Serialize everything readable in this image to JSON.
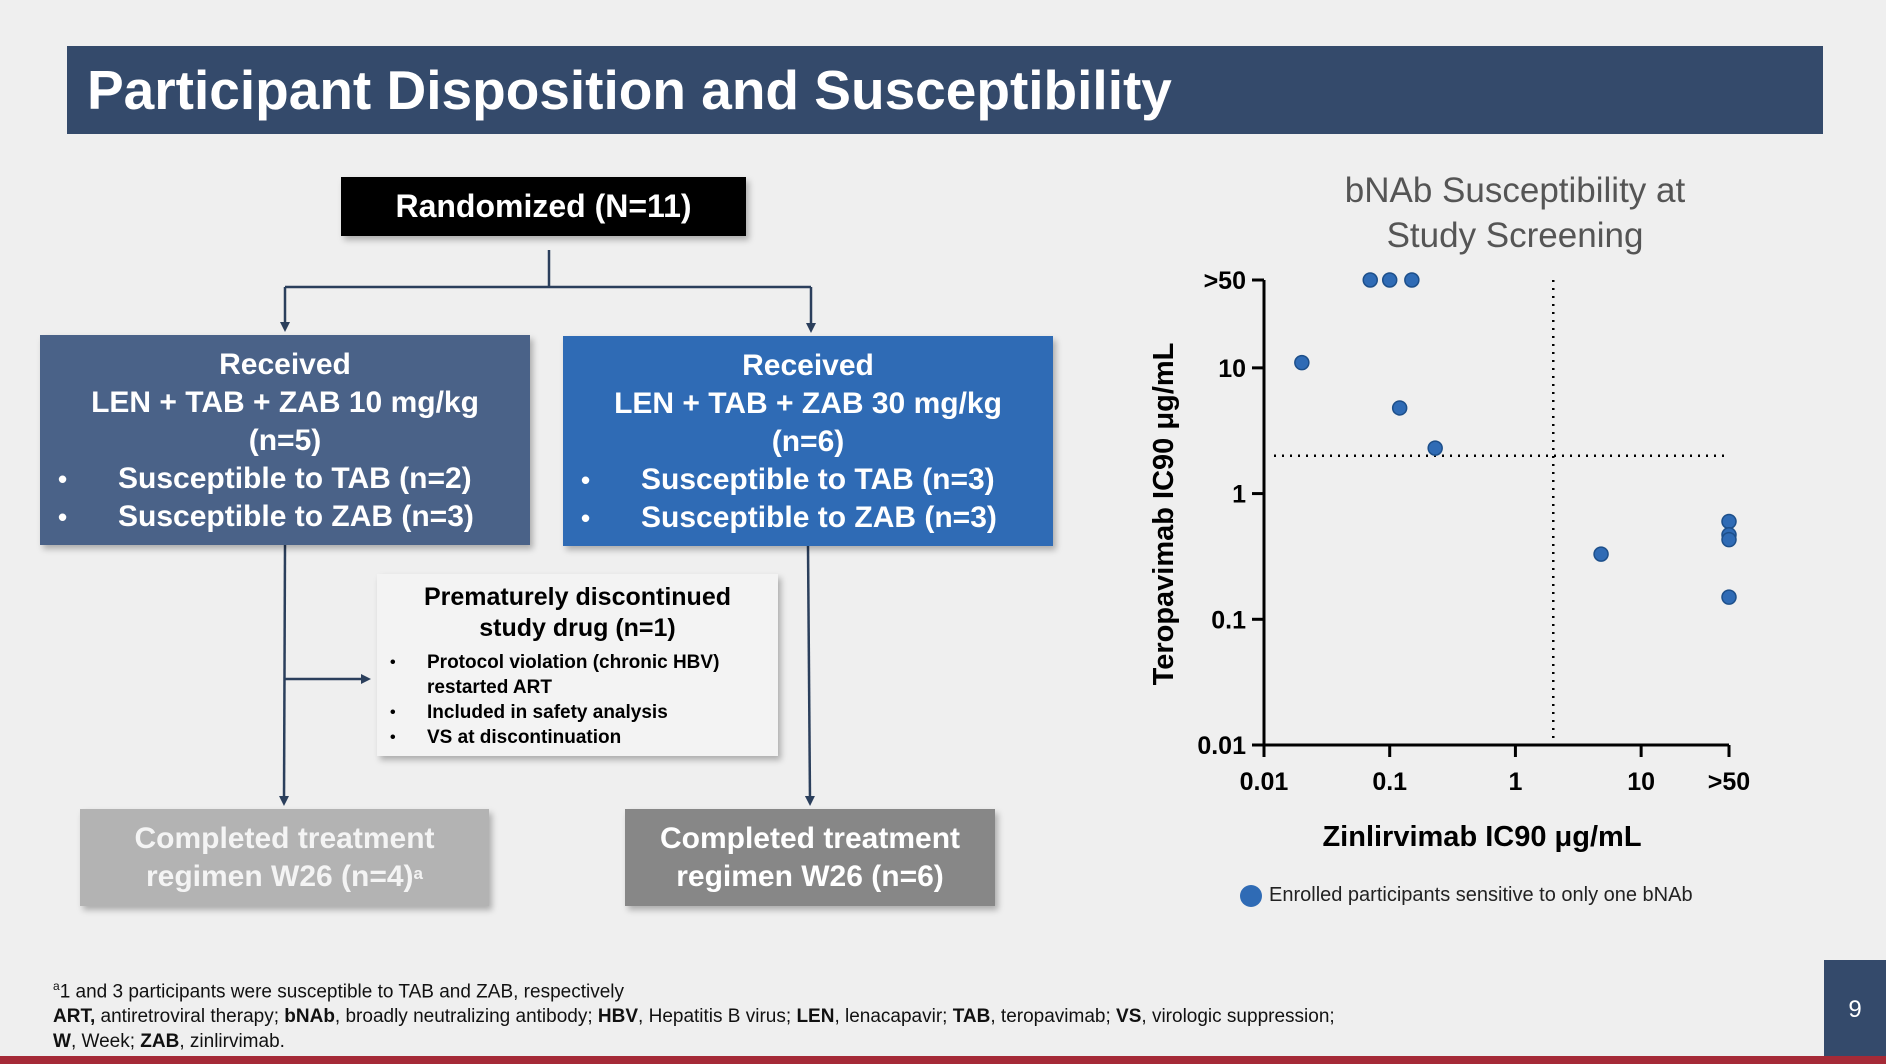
{
  "slide": {
    "title": "Participant Disposition and Susceptibility",
    "page_number": "9"
  },
  "flowchart": {
    "randomized": "Randomized (N=11)",
    "arm1": {
      "line1": "Received",
      "line2": "LEN + TAB + ZAB 10 mg/kg",
      "line3": "(n=5)",
      "bullets": [
        "Susceptible to TAB (n=2)",
        "Susceptible to ZAB (n=3)"
      ]
    },
    "arm2": {
      "line1": "Received",
      "line2": "LEN + TAB + ZAB 30 mg/kg",
      "line3": "(n=6)",
      "bullets": [
        "Susceptible to TAB (n=3)",
        "Susceptible to ZAB (n=3)"
      ]
    },
    "discontinued": {
      "title_line1": "Prematurely discontinued",
      "title_line2": "study drug (n=1)",
      "bullets": [
        "Protocol violation (chronic HBV)",
        "restarted ART",
        "Included in safety analysis",
        "VS at discontinuation"
      ]
    },
    "completed1": {
      "line1": "Completed treatment",
      "line2": "regimen W26 (n=4)",
      "sup": "a"
    },
    "completed2": {
      "line1": "Completed treatment",
      "line2": "regimen W26 (n=6)"
    }
  },
  "chart_data": {
    "type": "scatter",
    "title": "bNAb Susceptibility at Study Screening",
    "xlabel": "Zinlirvimab IC90 μg/mL",
    "ylabel": "Teropavimab IC90 μg/mL",
    "x_scale": "log",
    "y_scale": "log",
    "xticks": [
      "0.01",
      "0.1",
      "1",
      "10",
      ">50"
    ],
    "yticks": [
      "0.01",
      "0.1",
      "1",
      "10",
      ">50"
    ],
    "xlim": [
      0.01,
      50
    ],
    "ylim": [
      0.01,
      50
    ],
    "thresholds": {
      "x": 2,
      "y": 2
    },
    "grid": false,
    "legend": "Enrolled participants sensitive to only one bNAb",
    "legend_position": "bottom",
    "color": "#2f6bb5",
    "points": [
      {
        "x": 0.07,
        "y": 50
      },
      {
        "x": 0.1,
        "y": 50
      },
      {
        "x": 0.15,
        "y": 50
      },
      {
        "x": 0.02,
        "y": 11
      },
      {
        "x": 0.12,
        "y": 4.8
      },
      {
        "x": 0.23,
        "y": 2.3
      },
      {
        "x": 4.8,
        "y": 0.33
      },
      {
        "x": 50,
        "y": 0.6
      },
      {
        "x": 50,
        "y": 0.47
      },
      {
        "x": 50,
        "y": 0.43
      },
      {
        "x": 50,
        "y": 0.15
      }
    ]
  },
  "footnote": {
    "line1": "1 and 3 participants were susceptible to TAB and ZAB, respectively",
    "line1_sup": "a",
    "abbreviations": [
      {
        "abbr": "ART,",
        "def": " antiretroviral therapy; "
      },
      {
        "abbr": "bNAb",
        "def": ", broadly neutralizing antibody; "
      },
      {
        "abbr": "HBV",
        "def": ", Hepatitis B virus; "
      },
      {
        "abbr": "LEN",
        "def": ", lenacapavir; "
      },
      {
        "abbr": "TAB",
        "def": ", teropavimab; "
      },
      {
        "abbr": "VS",
        "def": ", virologic suppression;"
      },
      {
        "abbr": "W",
        "def": ", Week; "
      },
      {
        "abbr": "ZAB",
        "def": ", zinlirvimab."
      }
    ]
  }
}
